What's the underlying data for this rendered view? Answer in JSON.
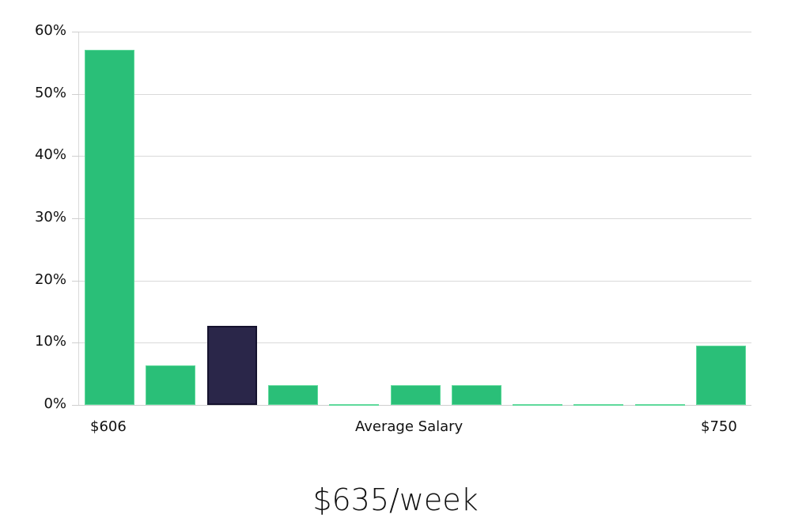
{
  "chart_data": {
    "type": "bar",
    "title": "",
    "xlabel": "Average Salary",
    "ylabel": "",
    "ylim": [
      0,
      60
    ],
    "yticks": [
      "0%",
      "10%",
      "20%",
      "30%",
      "40%",
      "50%",
      "60%"
    ],
    "x_range_labels": {
      "min": "$606",
      "max": "$750"
    },
    "categories": [
      "bin1",
      "bin2",
      "bin3",
      "bin4",
      "bin5",
      "bin6",
      "bin7",
      "bin8",
      "bin9",
      "bin10",
      "bin11"
    ],
    "values": [
      57.1,
      6.3,
      12.7,
      3.2,
      0,
      3.2,
      3.2,
      0,
      0,
      0,
      9.5
    ],
    "highlight_index": 2,
    "colors": {
      "default": "#2abf78",
      "highlight": "#2a2649",
      "highlight_border": "#15122e",
      "grid": "#d9d9d9"
    },
    "grid": true,
    "legend": null
  },
  "axis": {
    "x_min_label": "$606",
    "x_center_label": "Average Salary",
    "x_max_label": "$750"
  },
  "summary": {
    "value": "$635/week"
  }
}
